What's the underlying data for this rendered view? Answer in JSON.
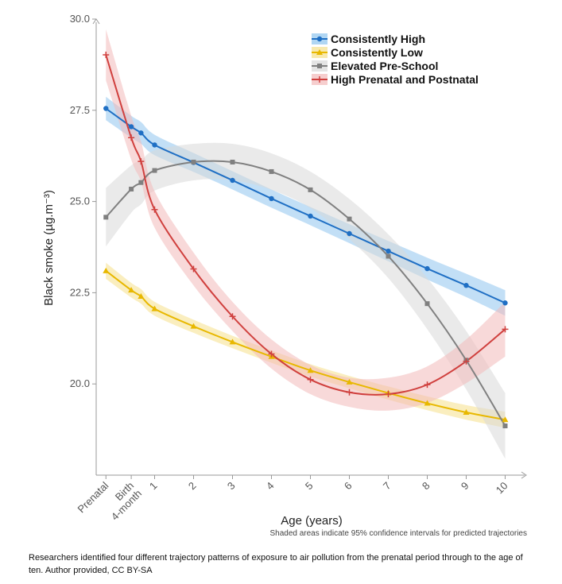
{
  "chart_data": {
    "type": "line",
    "ylabel": "Black smoke (µg.m⁻³)",
    "xlabel": "Age (years)",
    "note": "Shaded areas indicate 95% confidence intervals for predicted trajectories",
    "ylim": [
      17.5,
      30.0
    ],
    "yticks": [
      20.0,
      22.5,
      25.0,
      27.5,
      30.0
    ],
    "ytick_labels": [
      "20.0",
      "22.5",
      "25.0",
      "27.5",
      "30.0"
    ],
    "xlim": [
      -0.5,
      10.5
    ],
    "x": [
      -0.25,
      0.4,
      0.65,
      1,
      2,
      3,
      4,
      5,
      6,
      7,
      8,
      9,
      10
    ],
    "x_tick_positions": [
      -0.25,
      0.4,
      1,
      2,
      3,
      4,
      5,
      6,
      7,
      8,
      9,
      10
    ],
    "x_tick_labels": [
      [
        "Prenatal"
      ],
      [
        "Birth",
        "4-month"
      ],
      [
        "1"
      ],
      [
        "2"
      ],
      [
        "3"
      ],
      [
        "4"
      ],
      [
        "5"
      ],
      [
        "6"
      ],
      [
        "7"
      ],
      [
        "8"
      ],
      [
        "9"
      ],
      [
        "10"
      ]
    ],
    "legend_position": "top-right",
    "series": [
      {
        "name": "Consistently High",
        "color": "#1f6fc4",
        "band_color": "#8fc4ee",
        "marker": "circle",
        "values": [
          27.55,
          27.05,
          26.88,
          26.55,
          26.07,
          25.58,
          25.08,
          24.6,
          24.12,
          23.64,
          23.16,
          22.7,
          22.22
        ],
        "band": [
          0.32,
          0.3,
          0.3,
          0.28,
          0.26,
          0.25,
          0.25,
          0.25,
          0.26,
          0.28,
          0.3,
          0.32,
          0.35
        ]
      },
      {
        "name": "Consistently Low",
        "color": "#e8b800",
        "band_color": "#f5e08a",
        "marker": "triangle",
        "values": [
          23.1,
          22.57,
          22.4,
          22.06,
          21.58,
          21.15,
          20.75,
          20.37,
          20.05,
          19.75,
          19.47,
          19.22,
          19.02
        ],
        "band": [
          0.22,
          0.2,
          0.2,
          0.19,
          0.18,
          0.17,
          0.17,
          0.17,
          0.17,
          0.18,
          0.19,
          0.2,
          0.22
        ]
      },
      {
        "name": "Elevated Pre-School",
        "color": "#808080",
        "band_color": "#d9d9d9",
        "marker": "square",
        "values": [
          24.57,
          25.34,
          25.52,
          25.85,
          26.08,
          26.08,
          25.82,
          25.32,
          24.52,
          23.5,
          22.2,
          20.65,
          18.85
        ],
        "band": [
          0.8,
          0.65,
          0.6,
          0.55,
          0.5,
          0.5,
          0.5,
          0.5,
          0.55,
          0.6,
          0.7,
          0.8,
          0.9
        ]
      },
      {
        "name": "High Prenatal and Postnatal",
        "color": "#d0403e",
        "band_color": "#f2b9b9",
        "marker": "plus",
        "values": [
          29.02,
          26.75,
          26.1,
          24.78,
          23.15,
          21.85,
          20.82,
          20.12,
          19.77,
          19.72,
          19.98,
          20.62,
          21.5
        ],
        "band": [
          0.7,
          0.6,
          0.55,
          0.5,
          0.45,
          0.4,
          0.4,
          0.4,
          0.4,
          0.45,
          0.5,
          0.6,
          0.75
        ]
      }
    ]
  },
  "caption": {
    "text": "Researchers identified four different trajectory patterns of exposure to air pollution from the prenatal period through to the age of ten.",
    "credit": "Author provided, CC BY-SA"
  }
}
